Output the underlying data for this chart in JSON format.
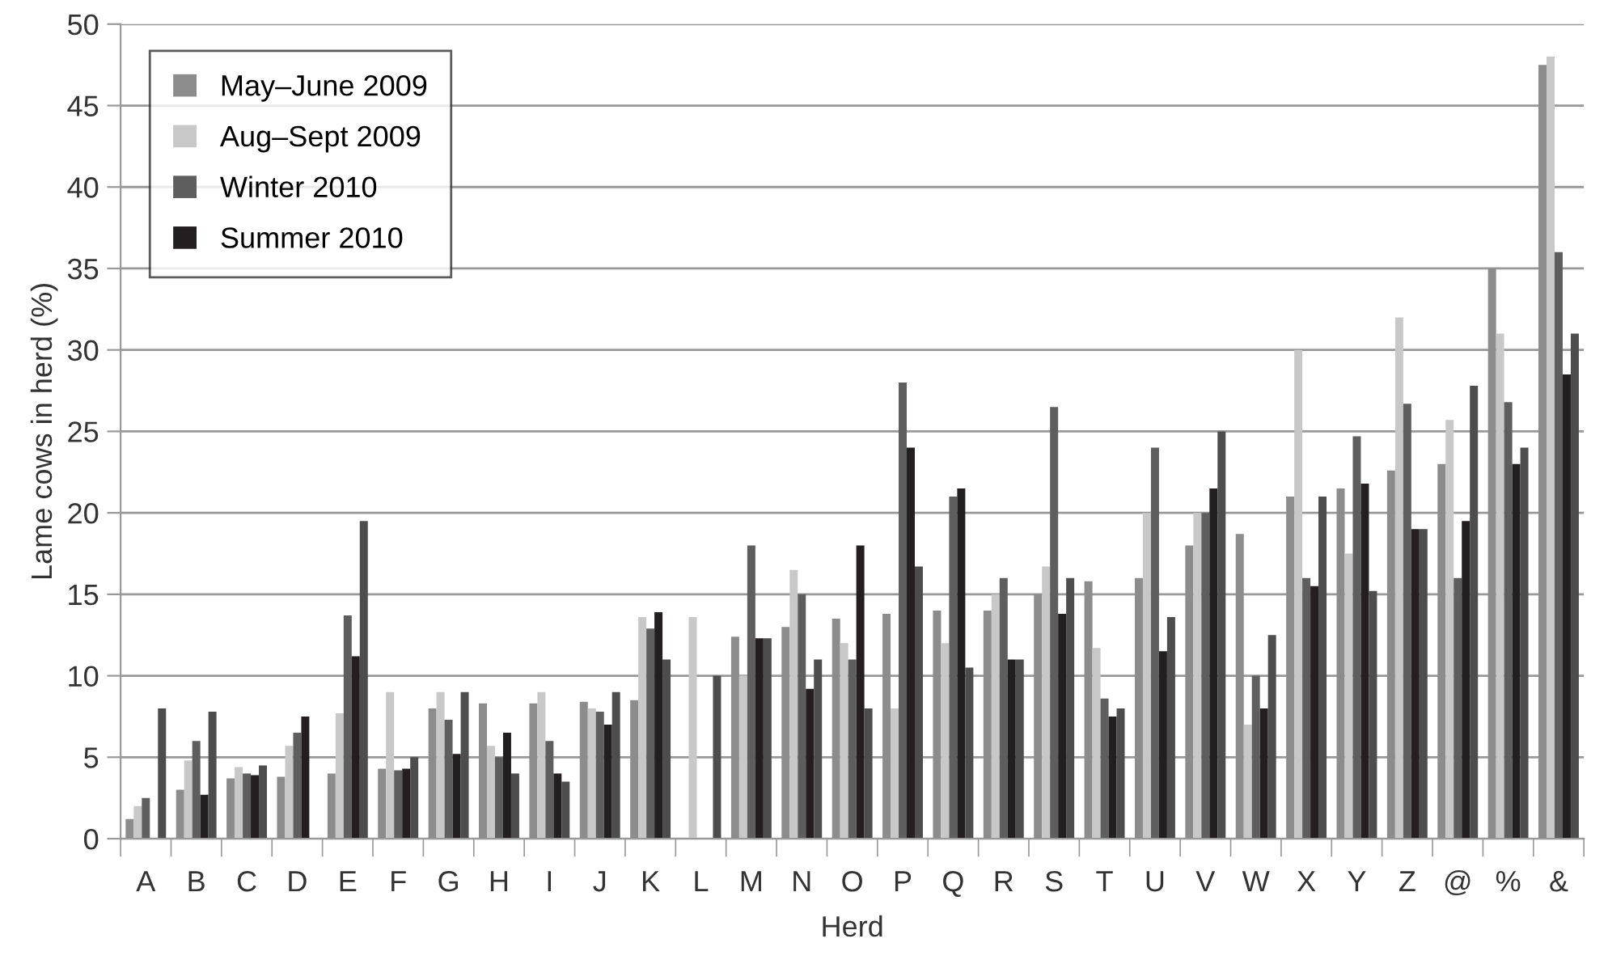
{
  "chart_data": {
    "type": "bar",
    "xlabel": "Herd",
    "ylabel": "Lame cows in herd (%)",
    "categories": [
      "A",
      "B",
      "C",
      "D",
      "E",
      "F",
      "G",
      "H",
      "I",
      "J",
      "K",
      "L",
      "M",
      "N",
      "O",
      "P",
      "Q",
      "R",
      "S",
      "T",
      "U",
      "V",
      "W",
      "X",
      "Y",
      "Z",
      "@",
      "%",
      "&"
    ],
    "series": [
      {
        "name": "May–June 2009",
        "color": "#8c8c8c",
        "values": [
          1.2,
          3,
          3.7,
          3.8,
          4,
          4.3,
          8,
          8.3,
          8.3,
          8.4,
          8.5,
          null,
          12.4,
          13,
          13.5,
          13.8,
          14,
          14,
          15,
          15.8,
          16,
          18,
          18.7,
          21,
          21.5,
          22.6,
          23,
          35,
          47.5
        ]
      },
      {
        "name": "Aug–Sept 2009",
        "color": "#c8c8c8",
        "values": [
          2,
          4.8,
          4.4,
          5.7,
          7.7,
          9,
          9,
          5.7,
          9,
          8,
          13.6,
          13.6,
          10,
          16.5,
          12,
          8,
          12,
          15,
          16.7,
          11.7,
          20,
          20,
          7,
          30,
          17.5,
          32,
          25.7,
          31,
          48
        ]
      },
      {
        "name": "Winter 2010",
        "color": "#5e5e5e",
        "values": [
          2.5,
          6,
          4,
          6.5,
          13.7,
          4.2,
          7.3,
          5,
          6,
          7.8,
          12.9,
          null,
          18,
          15,
          11,
          28,
          21,
          16,
          26.5,
          8.6,
          24,
          20,
          10,
          16,
          24.7,
          26.7,
          16,
          26.8,
          36
        ]
      },
      {
        "name": "Summer 2010",
        "color": "#231f20",
        "values": [
          null,
          2.7,
          3.9,
          7.5,
          11.2,
          4.3,
          5.2,
          6.5,
          4,
          7,
          13.9,
          null,
          12.3,
          9.2,
          18,
          24,
          21.5,
          11,
          13.8,
          7.5,
          11.5,
          21.5,
          8,
          15.5,
          21.8,
          19,
          19.5,
          23,
          28.5
        ]
      },
      {
        "color": "#4d4d4d",
        "values": [
          8,
          7.8,
          4.5,
          null,
          19.5,
          5,
          9,
          4,
          3.5,
          9,
          11,
          10,
          12.3,
          11,
          8,
          16.7,
          10.5,
          11,
          16,
          8,
          13.6,
          25,
          12.5,
          21,
          15.2,
          19,
          27.8,
          24,
          31
        ]
      }
    ],
    "ylim": [
      0,
      50
    ],
    "yticks": [
      0,
      5,
      10,
      15,
      20,
      25,
      30,
      35,
      40,
      45,
      50
    ],
    "grid": "y",
    "legend": "top left"
  }
}
